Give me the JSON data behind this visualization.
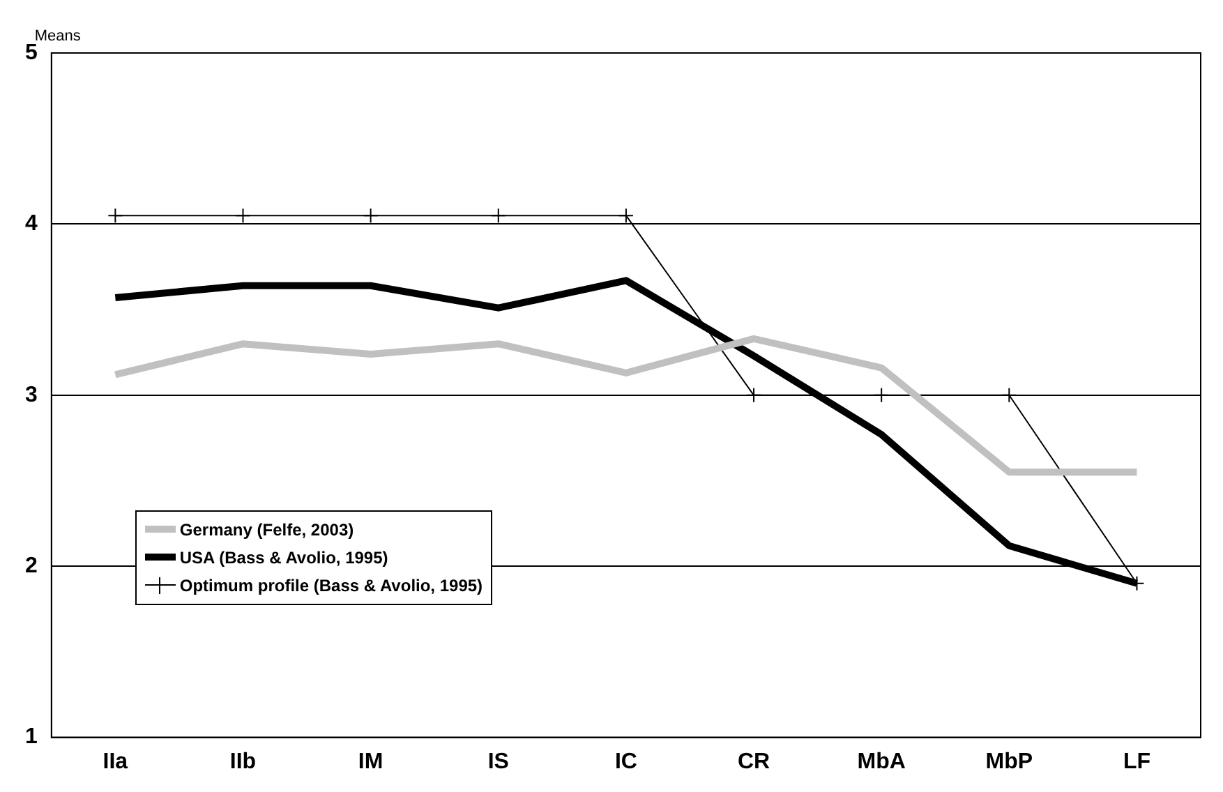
{
  "chart_data": {
    "type": "line",
    "ylabel": "Means",
    "categories": [
      "IIa",
      "IIb",
      "IM",
      "IS",
      "IC",
      "CR",
      "MbA",
      "MbP",
      "LF"
    ],
    "series": [
      {
        "name": "Germany (Felfe, 2003)",
        "color": "#c0c0c0",
        "marker": "none",
        "values": [
          3.12,
          3.3,
          3.24,
          3.3,
          3.13,
          3.33,
          3.16,
          2.55,
          2.55
        ]
      },
      {
        "name": "USA (Bass & Avolio, 1995)",
        "color": "#000000",
        "marker": "none",
        "values": [
          3.57,
          3.64,
          3.64,
          3.51,
          3.67,
          3.23,
          2.77,
          2.12,
          1.9
        ]
      },
      {
        "name": "Optimum profile (Bass & Avolio, 1995)",
        "color": "#000000",
        "marker": "cross",
        "values": [
          4.05,
          4.05,
          4.05,
          4.05,
          4.05,
          3.0,
          3.0,
          3.0,
          1.9
        ]
      }
    ],
    "ylim": [
      1,
      5
    ],
    "yticks": [
      1,
      2,
      3,
      4,
      5
    ],
    "grid": "y",
    "legend": "bottom left"
  }
}
